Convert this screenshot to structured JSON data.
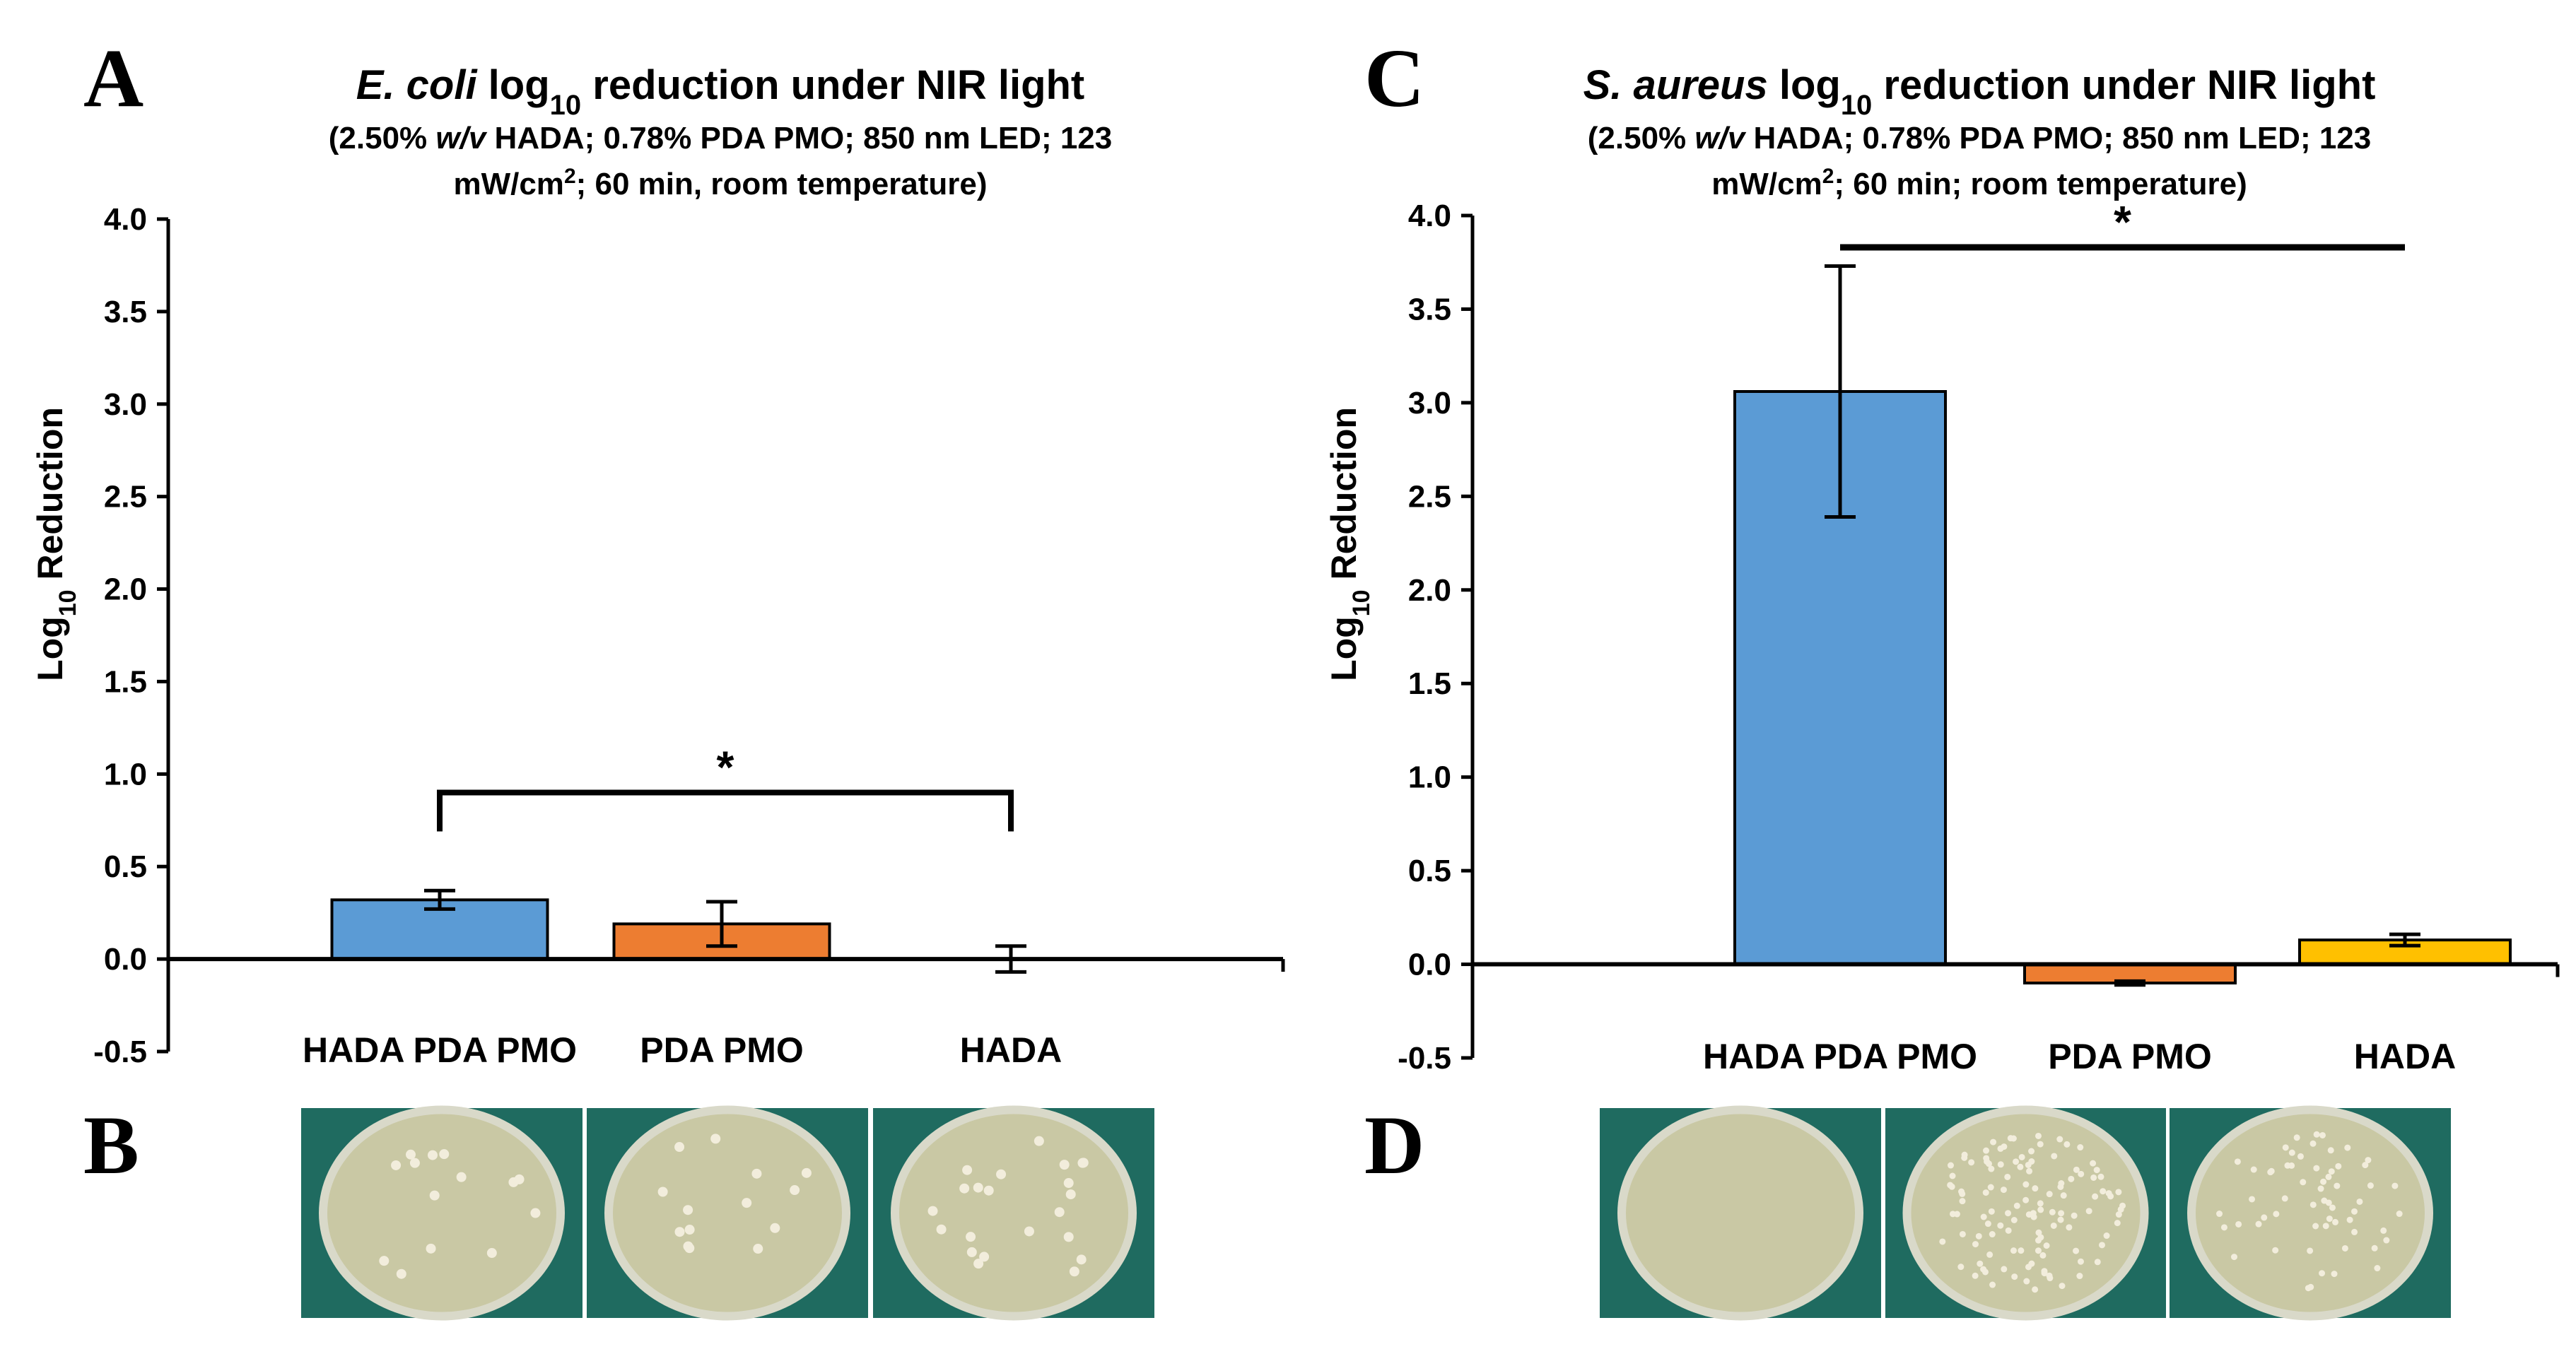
{
  "chart_data": [
    {
      "panel": "A",
      "type": "bar",
      "title": {
        "organism": "E. coli",
        "rest": " log",
        "sub": "10",
        "tail": " reduction under NIR light"
      },
      "subtitle": {
        "line1_pre": "(2.50% ",
        "line1_ital": "w/v",
        "line1_post": " HADA; 0.78% PDA PMO; 850 nm LED; 123",
        "line2_pre": "mW/cm",
        "line2_sup": "2",
        "line2_post": "; 60 min, room temperature)"
      },
      "ylabel": {
        "pre": "Log",
        "sub": "10",
        "post": " Reduction"
      },
      "xlabel": "",
      "ylim": [
        -0.5,
        4.0
      ],
      "yticks": [
        -0.5,
        0.0,
        0.5,
        1.0,
        1.5,
        2.0,
        2.5,
        3.0,
        3.5,
        4.0
      ],
      "ytick_labels": [
        "-0.5",
        "0.0",
        "0.5",
        "1.0",
        "1.5",
        "2.0",
        "2.5",
        "3.0",
        "3.5",
        "4.0"
      ],
      "categories": [
        "HADA PDA PMO",
        "PDA PMO",
        "HADA"
      ],
      "values": [
        0.32,
        0.19,
        0.0
      ],
      "errors": [
        0.05,
        0.12,
        0.07
      ],
      "colors": [
        "#5b9bd5",
        "#ed7d31",
        "#ffc000"
      ],
      "significance": {
        "from": 0,
        "to": 2,
        "y": 0.9,
        "label": "*"
      }
    },
    {
      "panel": "C",
      "type": "bar",
      "title": {
        "organism": "S. aureus",
        "rest": " log",
        "sub": "10",
        "tail": " reduction under NIR light"
      },
      "subtitle": {
        "line1_pre": "(2.50% ",
        "line1_ital": "w/v",
        "line1_post": " HADA; 0.78% PDA PMO; 850 nm LED; 123",
        "line2_pre": "mW/cm",
        "line2_sup": "2",
        "line2_post": "; 60 min; room temperature)"
      },
      "ylabel": {
        "pre": "Log",
        "sub": "10",
        "post": " Reduction"
      },
      "xlabel": "",
      "ylim": [
        -0.5,
        4.0
      ],
      "yticks": [
        -0.5,
        0.0,
        0.5,
        1.0,
        1.5,
        2.0,
        2.5,
        3.0,
        3.5,
        4.0
      ],
      "ytick_labels": [
        "-0.5",
        "0.0",
        "0.5",
        "1.0",
        "1.5",
        "2.0",
        "2.5",
        "3.0",
        "3.5",
        "4.0"
      ],
      "categories": [
        "HADA PDA PMO",
        "PDA PMO",
        "HADA"
      ],
      "values": [
        3.06,
        -0.1,
        0.13
      ],
      "errors": [
        0.67,
        0.01,
        0.03
      ],
      "colors": [
        "#5b9bd5",
        "#ed7d31",
        "#ffc000"
      ],
      "significance": {
        "from": 0,
        "to": 2,
        "y": 3.83,
        "label": "*"
      }
    }
  ],
  "plate_panels": [
    {
      "panel": "B",
      "plates": [
        {
          "name": "ecoli-hada-pda-pmo-plate",
          "colonies": 14
        },
        {
          "name": "ecoli-pda-pmo-plate",
          "colonies": 14
        },
        {
          "name": "ecoli-hada-plate",
          "colonies": 22
        }
      ]
    },
    {
      "panel": "D",
      "plates": [
        {
          "name": "saureus-hada-pda-pmo-plate",
          "colonies": 0
        },
        {
          "name": "saureus-pda-pmo-plate",
          "colonies": 120
        },
        {
          "name": "saureus-hada-plate",
          "colonies": 60
        }
      ]
    }
  ],
  "colors": {
    "axis": "#000000",
    "plate_background": "#1f6b60",
    "agar": "#c9c8a4",
    "colony": "#f2eddc"
  }
}
